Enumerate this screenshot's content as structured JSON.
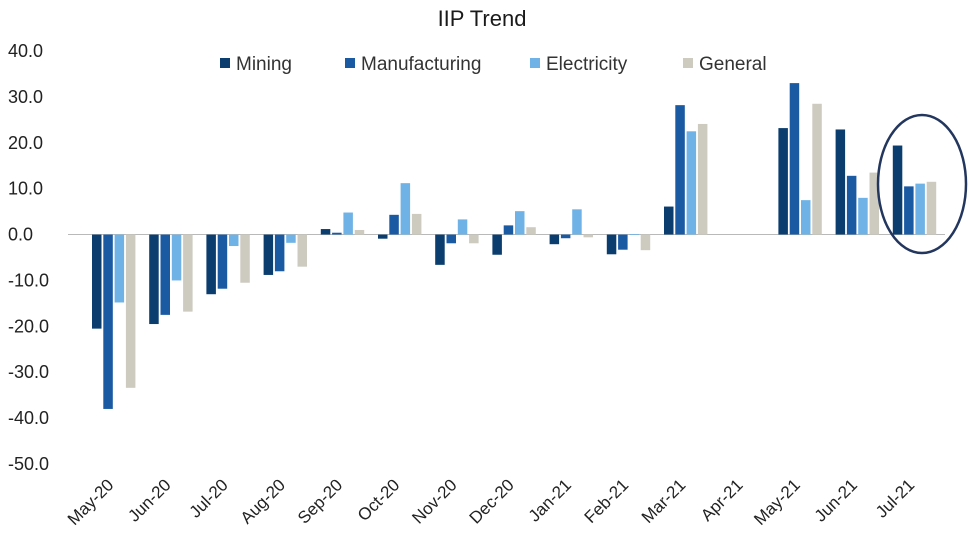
{
  "chart_data": {
    "type": "bar",
    "title": "IIP Trend",
    "xlabel": "",
    "ylabel": "",
    "ylim": [
      -50,
      40
    ],
    "yticks": [
      "40.0",
      "30.0",
      "20.0",
      "10.0",
      "0.0",
      "-10.0",
      "-20.0",
      "-30.0",
      "-40.0",
      "-50.0"
    ],
    "categories": [
      "May-20",
      "Jun-20",
      "Jul-20",
      "Aug-20",
      "Sep-20",
      "Oct-20",
      "Nov-20",
      "Dec-20",
      "Jan-21",
      "Feb-21",
      "Mar-21",
      "Apr-21",
      "May-21",
      "Jun-21",
      "Jul-21"
    ],
    "series": [
      {
        "name": "Mining",
        "color": "#0b3d6e",
        "values": [
          -20.5,
          -19.5,
          -13.0,
          -8.8,
          1.2,
          -0.9,
          -6.6,
          -4.4,
          -2.1,
          -4.3,
          6.1,
          null,
          23.2,
          22.9,
          19.4
        ]
      },
      {
        "name": "Manufacturing",
        "color": "#1a5aa3",
        "values": [
          -38.0,
          -17.5,
          -11.8,
          -8.0,
          0.4,
          4.3,
          -1.9,
          2.0,
          -0.8,
          -3.3,
          28.2,
          null,
          33.0,
          12.8,
          10.5
        ]
      },
      {
        "name": "Electricity",
        "color": "#6fb3e6",
        "values": [
          -14.8,
          -10.0,
          -2.5,
          -1.8,
          4.8,
          11.2,
          3.3,
          5.1,
          5.5,
          0.1,
          22.5,
          null,
          7.5,
          8.0,
          11.1
        ]
      },
      {
        "name": "General",
        "color": "#cdcbbf",
        "values": [
          -33.4,
          -16.8,
          -10.5,
          -7.0,
          1.0,
          4.5,
          -1.9,
          1.6,
          -0.6,
          -3.4,
          24.1,
          null,
          28.5,
          13.5,
          11.5
        ]
      }
    ],
    "legend_position": "top",
    "grid": false,
    "highlight": "Jul-21"
  }
}
